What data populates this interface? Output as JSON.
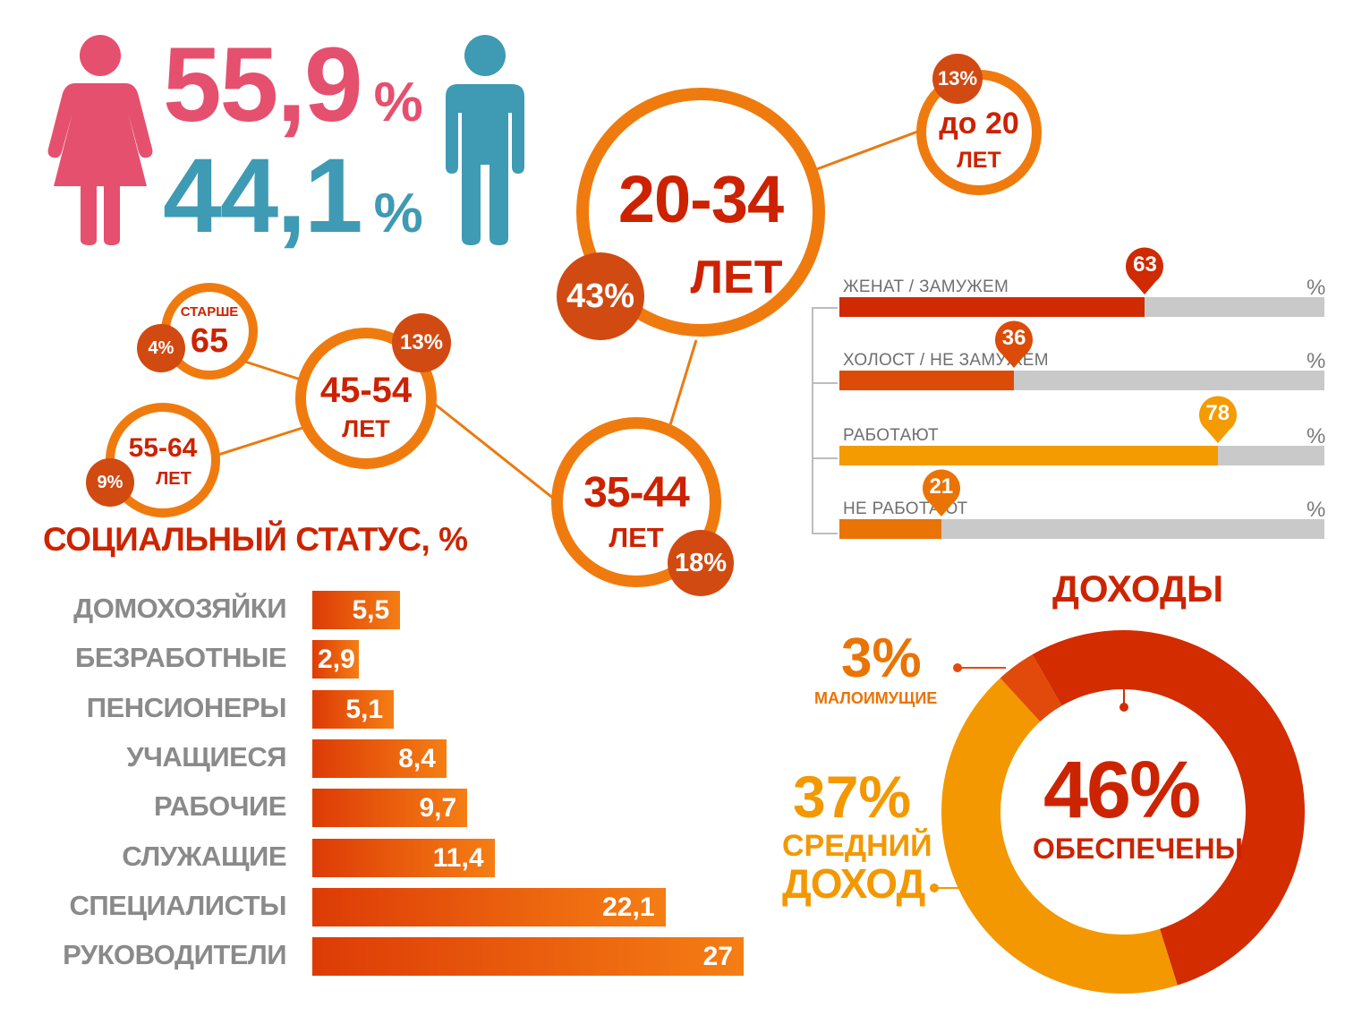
{
  "gender": {
    "female": {
      "value": "55,9",
      "pct": "%",
      "color": "#e5506f"
    },
    "male": {
      "value": "44,1",
      "pct": "%",
      "color": "#3f9ab4"
    }
  },
  "age_groups": {
    "a20_34": {
      "range": "20-34",
      "unit": "ЛЕТ",
      "share": "43%"
    },
    "under20": {
      "range": "до 20",
      "unit": "ЛЕТ",
      "share": "13%"
    },
    "a35_44": {
      "range": "35-44",
      "unit": "ЛЕТ",
      "share": "18%"
    },
    "a45_54": {
      "range": "45-54",
      "unit": "ЛЕТ",
      "share": "13%"
    },
    "over65": {
      "prefix": "СТАРШЕ",
      "range": "65",
      "share": "4%"
    },
    "a55_64": {
      "range": "55-64",
      "unit": "ЛЕТ",
      "share": "9%"
    }
  },
  "marital": {
    "items": [
      {
        "label": "ЖЕНАТ / ЗАМУЖЕМ",
        "value": 63,
        "value_text": "63",
        "pct": "%",
        "color": "#cf2a02"
      },
      {
        "label": "ХОЛОСТ / НЕ ЗАМУЖЕМ",
        "value": 36,
        "value_text": "36",
        "pct": "%",
        "color": "#dc4b07"
      },
      {
        "label": "РАБОТАЮТ",
        "value": 78,
        "value_text": "78",
        "pct": "%",
        "color": "#f39b00"
      },
      {
        "label": "НЕ РАБОТАЮТ",
        "value": 21,
        "value_text": "21",
        "pct": "%",
        "color": "#ea7305"
      }
    ]
  },
  "social": {
    "title": "СОЦИАЛЬНЫЙ СТАТУС, %",
    "items": [
      {
        "label": "ДОМОХОЗЯЙКИ",
        "value": 5.5,
        "value_text": "5,5"
      },
      {
        "label": "БЕЗРАБОТНЫЕ",
        "value": 2.9,
        "value_text": "2,9"
      },
      {
        "label": "ПЕНСИОНЕРЫ",
        "value": 5.1,
        "value_text": "5,1"
      },
      {
        "label": "УЧАЩИЕСЯ",
        "value": 8.4,
        "value_text": "8,4"
      },
      {
        "label": "РАБОЧИЕ",
        "value": 9.7,
        "value_text": "9,7"
      },
      {
        "label": "СЛУЖАЩИЕ",
        "value": 11.4,
        "value_text": "11,4"
      },
      {
        "label": "СПЕЦИАЛИСТЫ",
        "value": 22.1,
        "value_text": "22,1"
      },
      {
        "label": "РУКОВОДИТЕЛИ",
        "value": 27,
        "value_text": "27"
      }
    ]
  },
  "income": {
    "title": "ДОХОДЫ",
    "segments": [
      {
        "label": "ОБЕСПЕЧЕНЫ",
        "value": 46,
        "value_text": "46%",
        "color": "#d22c00"
      },
      {
        "label_line1": "СРЕДНИЙ",
        "label_line2": "ДОХОД",
        "value": 37,
        "value_text": "37%",
        "color": "#f39800"
      },
      {
        "label": "МАЛОИМУЩИЕ",
        "value": 3,
        "value_text": "3%",
        "color": "#e14a0a"
      }
    ]
  },
  "chart_data": [
    {
      "type": "bar",
      "title": "СОЦИАЛЬНЫЙ СТАТУС, %",
      "categories": [
        "ДОМОХОЗЯЙКИ",
        "БЕЗРАБОТНЫЕ",
        "ПЕНСИОНЕРЫ",
        "УЧАЩИЕСЯ",
        "РАБОЧИЕ",
        "СЛУЖАЩИЕ",
        "СПЕЦИАЛИСТЫ",
        "РУКОВОДИТЕЛИ"
      ],
      "values": [
        5.5,
        2.9,
        5.1,
        8.4,
        9.7,
        11.4,
        22.1,
        27
      ]
    },
    {
      "type": "bar",
      "categories": [
        "ЖЕНАТ / ЗАМУЖЕМ",
        "ХОЛОСТ / НЕ ЗАМУЖЕМ",
        "РАБОТАЮТ",
        "НЕ РАБОТАЮТ"
      ],
      "values": [
        63,
        36,
        78,
        21
      ],
      "ylim": [
        0,
        100
      ]
    },
    {
      "type": "pie",
      "title": "ДОХОДЫ",
      "categories": [
        "ОБЕСПЕЧЕНЫ",
        "СРЕДНИЙ ДОХОД",
        "МАЛОИМУЩИЕ"
      ],
      "values": [
        46,
        37,
        3
      ]
    },
    {
      "type": "pie",
      "categories": [
        "55,9 %",
        "44,1 %"
      ],
      "values": [
        55.9,
        44.1
      ]
    }
  ]
}
